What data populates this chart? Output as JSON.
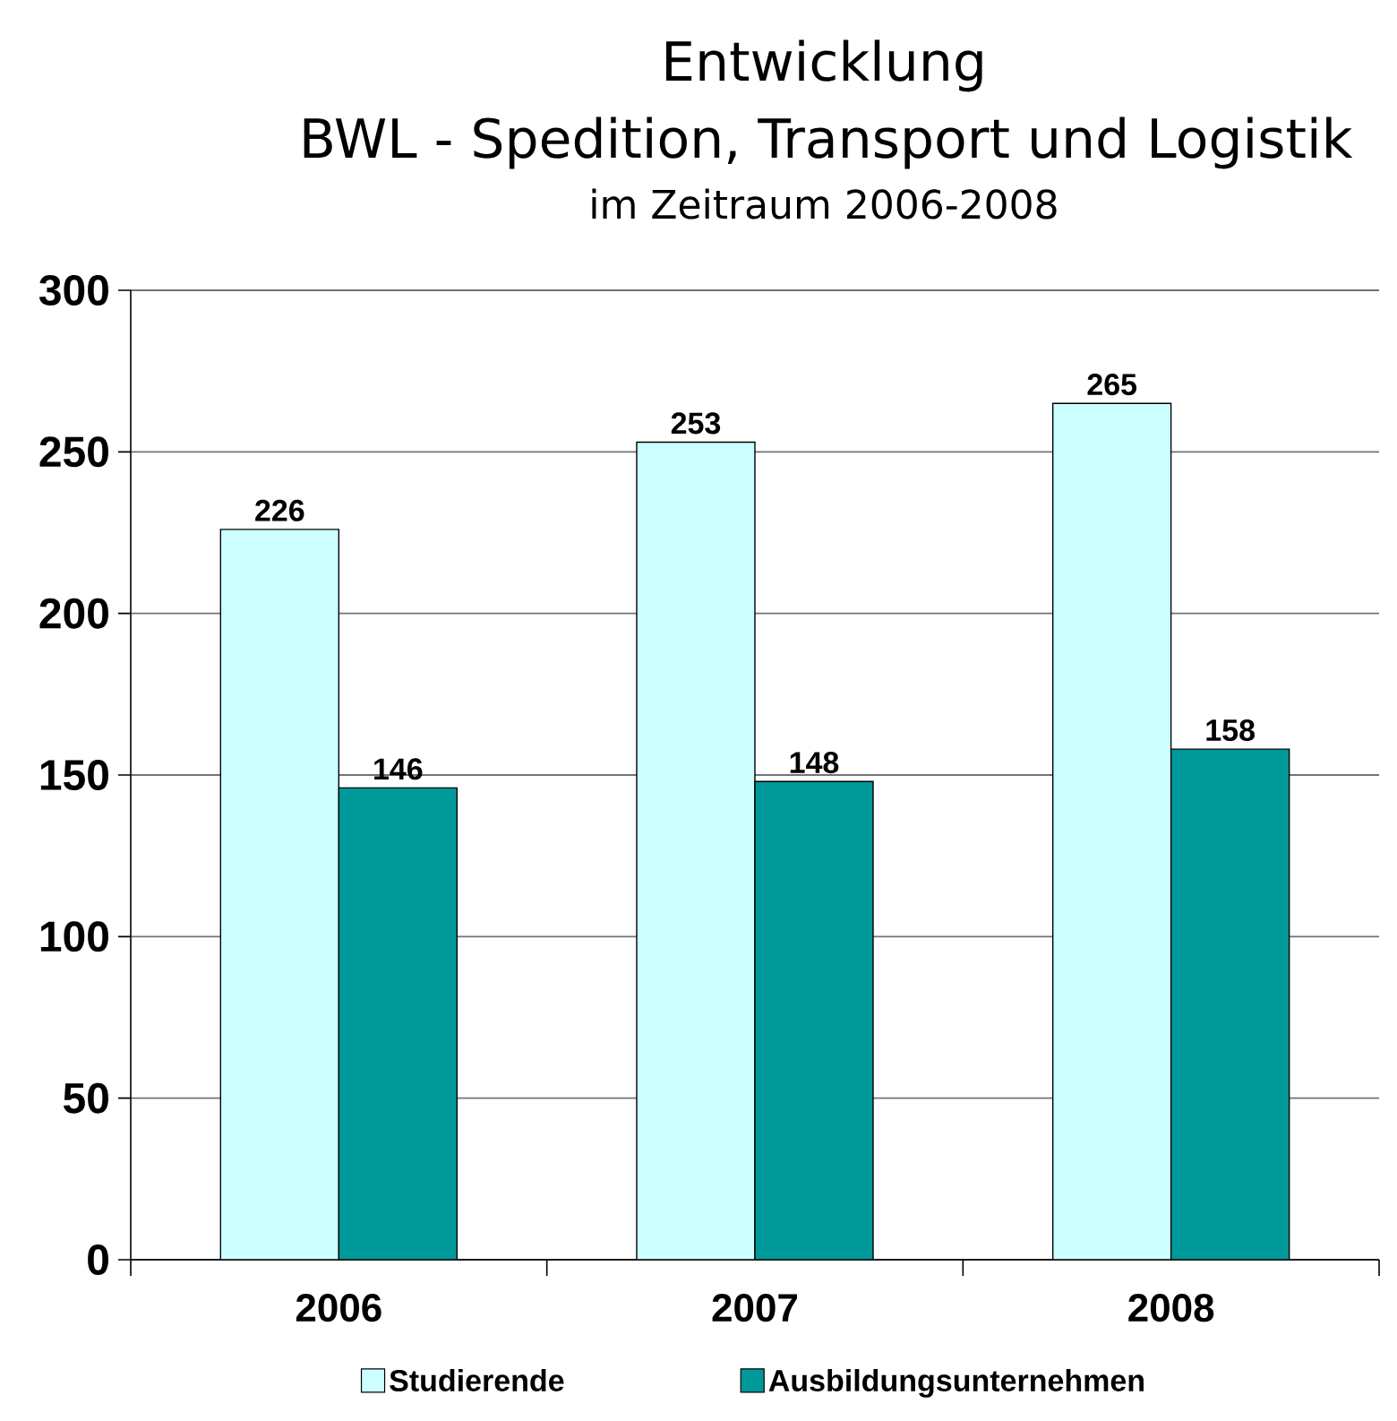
{
  "chart_data": {
    "type": "bar",
    "title": "Entwicklung",
    "subtitle": "BWL - Spedition, Transport und Logistik",
    "annotations": [
      "im Zeitraum 2006-2008"
    ],
    "categories": [
      "2006",
      "2007",
      "2008"
    ],
    "series": [
      {
        "name": "Studierende",
        "color": "#ccffff",
        "values": [
          226,
          253,
          265
        ]
      },
      {
        "name": "Ausbildungsunternehmen",
        "color": "#009999",
        "values": [
          146,
          148,
          158
        ]
      }
    ],
    "ylim": [
      0,
      300
    ],
    "yticks": [
      0,
      50,
      100,
      150,
      200,
      250,
      300
    ],
    "grid": "y",
    "legend": "bottom",
    "data_labels": true
  }
}
